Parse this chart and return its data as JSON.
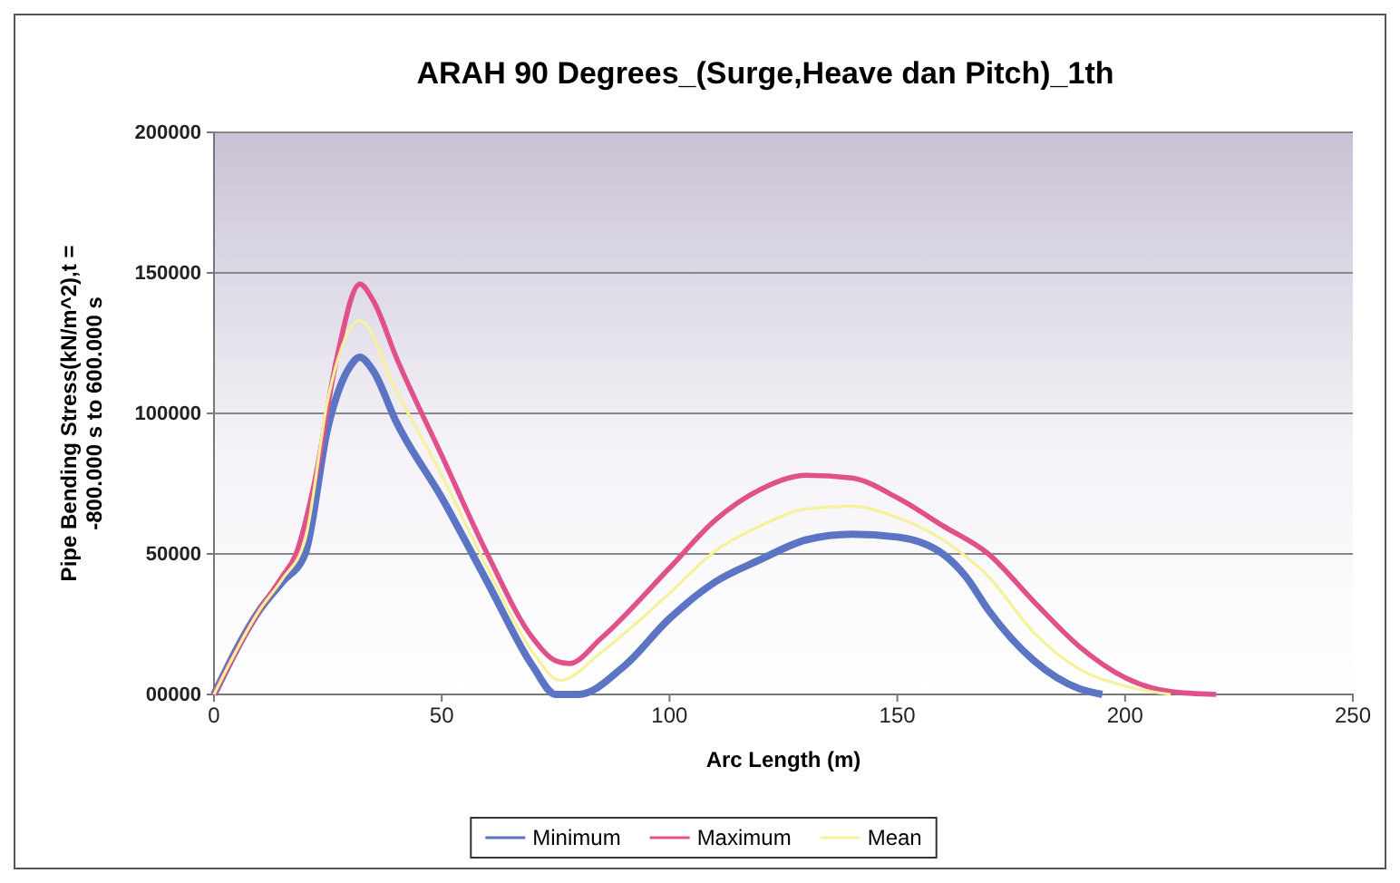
{
  "chart_data": {
    "type": "line",
    "title": "ARAH 90 Degrees_(Surge,Heave dan Pitch)_1th",
    "xlabel": "Arc Length (m)",
    "ylabel": "Pipe Bending Stress(kN/m^2),t = -800.000 s to 600.000 s",
    "xlim": [
      0,
      250
    ],
    "xticks": [
      0,
      50,
      100,
      150,
      200,
      250
    ],
    "ylim": [
      0,
      200000
    ],
    "yticks": [
      {
        "value": 0,
        "label": "00000"
      },
      50000,
      100000,
      150000,
      200000
    ],
    "grid": "y",
    "legend": "bottom",
    "marker": "none",
    "line_style": "solid",
    "series": [
      {
        "name": "Minimum",
        "color": "#5b74c4",
        "x": [
          0,
          10,
          15,
          20,
          25,
          30,
          32,
          35,
          40,
          50,
          60,
          70,
          75,
          80,
          90,
          100,
          110,
          120,
          130,
          140,
          150,
          160,
          165,
          170,
          180,
          190,
          195
        ],
        "values": [
          0,
          30000,
          40000,
          50000,
          95000,
          117000,
          120000,
          115000,
          97000,
          70000,
          40000,
          10000,
          0,
          0,
          10000,
          27000,
          40000,
          48000,
          55000,
          57000,
          56000,
          50000,
          42000,
          30000,
          12000,
          2000,
          0
        ]
      },
      {
        "name": "Maximum",
        "color": "#e0508a",
        "x": [
          0,
          10,
          15,
          18,
          22,
          27,
          32,
          35,
          40,
          50,
          60,
          70,
          75,
          78,
          85,
          100,
          110,
          120,
          130,
          140,
          150,
          160,
          170,
          180,
          190,
          200,
          210,
          220
        ],
        "values": [
          0,
          30000,
          42000,
          50000,
          75000,
          120000,
          146000,
          140000,
          120000,
          85000,
          50000,
          20000,
          12000,
          11000,
          20000,
          45000,
          62000,
          73000,
          78000,
          77000,
          70000,
          60000,
          50000,
          33000,
          17000,
          6000,
          1000,
          0
        ]
      },
      {
        "name": "Mean",
        "color": "#f6f19a",
        "x": [
          0,
          10,
          15,
          20,
          25,
          32,
          40,
          50,
          60,
          70,
          76,
          85,
          100,
          110,
          120,
          130,
          140,
          150,
          160,
          170,
          180,
          190,
          200,
          210
        ],
        "values": [
          0,
          30000,
          41000,
          55000,
          105000,
          133000,
          108000,
          78000,
          45000,
          15000,
          5000,
          15000,
          36000,
          51000,
          60000,
          66000,
          67000,
          63000,
          55000,
          42000,
          22000,
          9000,
          3000,
          0
        ]
      }
    ]
  }
}
